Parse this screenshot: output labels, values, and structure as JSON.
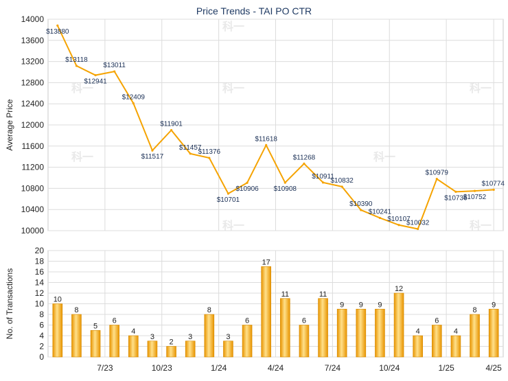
{
  "chart_data": [
    {
      "type": "line",
      "title": "Price Trends - TAI PO CTR",
      "ylabel": "Average Price",
      "ylim": [
        10000,
        14000
      ],
      "yticks": [
        10000,
        10400,
        10800,
        11200,
        11600,
        12000,
        12400,
        12800,
        13200,
        13600,
        14000
      ],
      "grid": true,
      "color": "#f5a300",
      "values": [
        13880,
        13118,
        12941,
        13011,
        12409,
        11517,
        11901,
        11457,
        11376,
        10701,
        10906,
        11618,
        10908,
        11268,
        10911,
        10832,
        10390,
        10241,
        10107,
        10032,
        10979,
        10736,
        10752,
        10774
      ],
      "value_labels": [
        "$13880",
        "$13118",
        "$12941",
        "$13011",
        "$12409",
        "$11517",
        "$11901",
        "$11457",
        "$11376",
        "$10701",
        "$10906",
        "$11618",
        "$10908",
        "$11268",
        "$10911",
        "$10832",
        "$10390",
        "$10241",
        "$10107",
        "$10032",
        "$10979",
        "$10736",
        "$10752",
        "$10774"
      ]
    },
    {
      "type": "bar",
      "ylabel": "No. of Transactions",
      "ylim": [
        0,
        20
      ],
      "yticks": [
        0,
        2,
        4,
        6,
        8,
        10,
        12,
        14,
        16,
        18,
        20
      ],
      "grid": true,
      "color": "#f5a300",
      "xticks": [
        "7/23",
        "10/23",
        "1/24",
        "4/24",
        "7/24",
        "10/24",
        "1/25",
        "4/25"
      ],
      "values": [
        10,
        8,
        5,
        6,
        4,
        3,
        2,
        3,
        8,
        3,
        6,
        17,
        11,
        6,
        11,
        9,
        9,
        9,
        12,
        4,
        6,
        4,
        8,
        9
      ]
    }
  ]
}
